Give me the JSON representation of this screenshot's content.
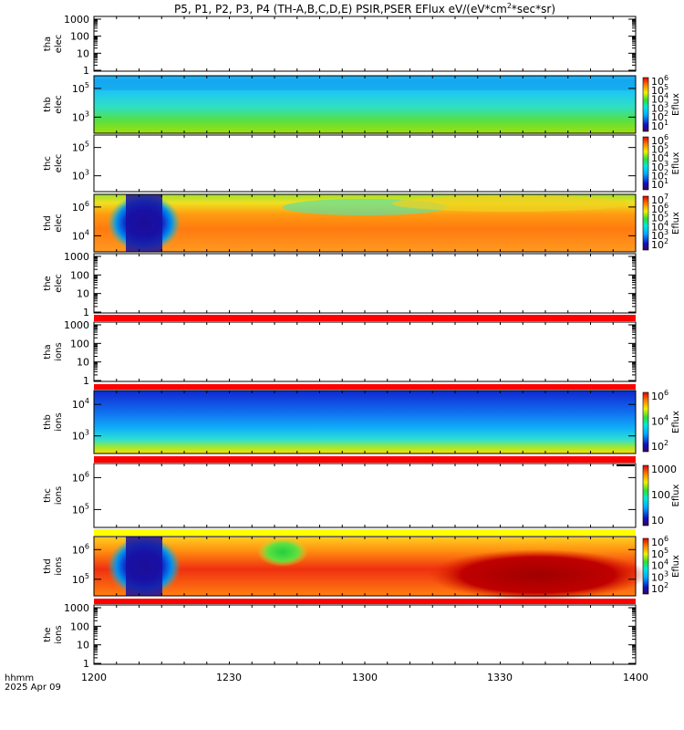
{
  "title": "P5, P1, P2, P3, P4 (TH-A,B,C,D,E) PSIR,PSER EFlux eV/(eV*cm",
  "title_sup": "2",
  "title_end": "*sec*sr)",
  "time_axis": {
    "label_line1": "hhmm",
    "label_line2": "2025 Apr 09",
    "ticks": [
      "1200",
      "1230",
      "1300",
      "1330",
      "1400"
    ]
  },
  "colors": {
    "red_band": "#ff0000",
    "yellow_band": "#ffff00"
  },
  "chart_data": [
    {
      "type": "heatmap",
      "name": "tha-elec",
      "label1": "tha",
      "label2": "elec",
      "yticks": [
        "1000",
        "100",
        "10",
        "1"
      ],
      "data": "empty"
    },
    {
      "type": "heatmap",
      "name": "thb-elec",
      "label1": "thb",
      "label2": "elec",
      "yticks": [
        "10",
        "10"
      ],
      "ytick_exp": [
        "5",
        "3"
      ],
      "data": "blue-top-to-green-yellow-bottom",
      "colorbar": {
        "label": "Eflux",
        "ticks": [
          "10",
          "10",
          "10",
          "10",
          "10",
          "10"
        ],
        "exps": [
          "6",
          "5",
          "4",
          "3",
          "2",
          "1"
        ]
      }
    },
    {
      "type": "heatmap",
      "name": "thc-elec",
      "label1": "thc",
      "label2": "elec",
      "yticks": [
        "10",
        "10"
      ],
      "ytick_exp": [
        "5",
        "3"
      ],
      "data": "empty",
      "colorbar": {
        "label": "Eflux",
        "ticks": [
          "10",
          "10",
          "10",
          "10",
          "10",
          "10"
        ],
        "exps": [
          "6",
          "5",
          "4",
          "3",
          "2",
          "1"
        ]
      }
    },
    {
      "type": "heatmap",
      "name": "thd-elec",
      "label1": "thd",
      "label2": "elec",
      "yticks": [
        "10",
        "10"
      ],
      "ytick_exp": [
        "6",
        "4"
      ],
      "data": "orange-with-blue-dropout",
      "colorbar": {
        "label": "Eflux",
        "ticks": [
          "10",
          "10",
          "10",
          "10",
          "10",
          "10"
        ],
        "exps": [
          "7",
          "6",
          "5",
          "4",
          "3",
          "2"
        ]
      }
    },
    {
      "type": "heatmap",
      "name": "the-elec",
      "label1": "the",
      "label2": "elec",
      "yticks": [
        "1000",
        "100",
        "10",
        "1"
      ],
      "data": "empty"
    },
    {
      "type": "heatmap",
      "name": "tha-ions",
      "label1": "tha",
      "label2": "ions",
      "yticks": [
        "1000",
        "100",
        "10",
        "1"
      ],
      "data": "empty"
    },
    {
      "type": "heatmap",
      "name": "thb-ions",
      "label1": "thb",
      "label2": "ions",
      "yticks": [
        "10",
        "10"
      ],
      "ytick_exp": [
        "4",
        "3"
      ],
      "data": "blue-top-to-yellow-bottom",
      "colorbar": {
        "label": "Eflux",
        "ticks": [
          "10",
          "10",
          "10"
        ],
        "exps": [
          "6",
          "4",
          "2"
        ]
      }
    },
    {
      "type": "heatmap",
      "name": "thc-ions",
      "label1": "thc",
      "label2": "ions",
      "yticks": [
        "10",
        "10"
      ],
      "ytick_exp": [
        "6",
        "5"
      ],
      "data": "empty",
      "colorbar": {
        "label": "Eflux",
        "ticks": [
          "1000",
          "100",
          "10"
        ]
      }
    },
    {
      "type": "heatmap",
      "name": "thd-ions",
      "label1": "thd",
      "label2": "ions",
      "yticks": [
        "10",
        "10"
      ],
      "ytick_exp": [
        "6",
        "5"
      ],
      "data": "orange-red-with-blue-dropout",
      "colorbar": {
        "label": "Eflux",
        "ticks": [
          "10",
          "10",
          "10",
          "10",
          "10"
        ],
        "exps": [
          "6",
          "5",
          "4",
          "3",
          "2"
        ]
      }
    },
    {
      "type": "heatmap",
      "name": "the-ions",
      "label1": "the",
      "label2": "ions",
      "yticks": [
        "1000",
        "100",
        "10",
        "1"
      ],
      "data": "empty"
    }
  ]
}
